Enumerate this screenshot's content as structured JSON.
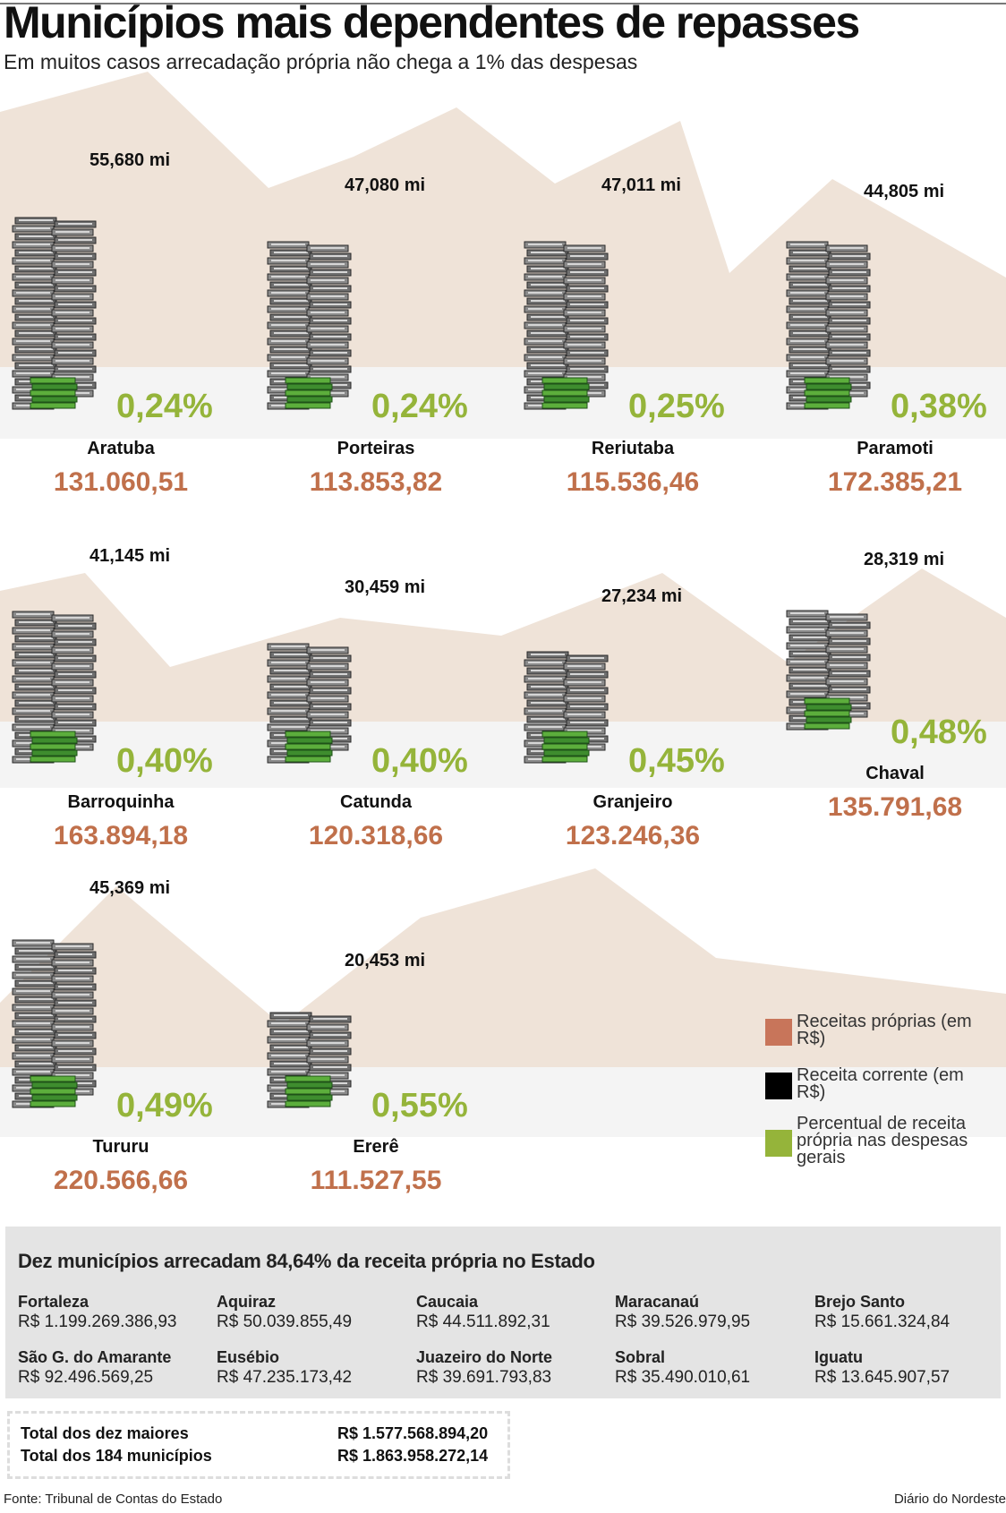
{
  "title": "Municípios mais dependentes de repasses",
  "subtitle": "Em muitos casos arrecadação própria não chega a 1% das despesas",
  "colors": {
    "receitas_proprias": "#c8755a",
    "receita_corrente": "#000000",
    "percentual": "#95b43a",
    "background_mountain": "#efe3d8",
    "band": "#f4f4f4"
  },
  "chart_data": {
    "type": "table",
    "title": "Municípios mais dependentes de repasses",
    "series_legend": [
      "Receitas próprias (em R$)",
      "Receita corrente (em R$)",
      "Percentual de receita própria nas despesas gerais"
    ],
    "rows": [
      {
        "municipio": "Aratuba",
        "receita_corrente": "55,680 mi",
        "percentual": "0,24%",
        "receitas_proprias": "131.060,51",
        "corrente_mi": 55.68
      },
      {
        "municipio": "Porteiras",
        "receita_corrente": "47,080 mi",
        "percentual": "0,24%",
        "receitas_proprias": "113.853,82",
        "corrente_mi": 47.08
      },
      {
        "municipio": "Reriutaba",
        "receita_corrente": "47,011 mi",
        "percentual": "0,25%",
        "receitas_proprias": "115.536,46",
        "corrente_mi": 47.011
      },
      {
        "municipio": "Paramoti",
        "receita_corrente": "44,805 mi",
        "percentual": "0,38%",
        "receitas_proprias": "172.385,21",
        "corrente_mi": 44.805
      },
      {
        "municipio": "Barroquinha",
        "receita_corrente": "41,145 mi",
        "percentual": "0,40%",
        "receitas_proprias": "163.894,18",
        "corrente_mi": 41.145
      },
      {
        "municipio": "Catunda",
        "receita_corrente": "30,459 mi",
        "percentual": "0,40%",
        "receitas_proprias": "120.318,66",
        "corrente_mi": 30.459
      },
      {
        "municipio": "Granjeiro",
        "receita_corrente": "27,234 mi",
        "percentual": "0,45%",
        "receitas_proprias": "123.246,36",
        "corrente_mi": 27.234
      },
      {
        "municipio": "Chaval",
        "receita_corrente": "28,319 mi",
        "percentual": "0,48%",
        "receitas_proprias": "135.791,68",
        "corrente_mi": 28.319
      },
      {
        "municipio": "Tururu",
        "receita_corrente": "45,369 mi",
        "percentual": "0,49%",
        "receitas_proprias": "220.566,66",
        "corrente_mi": 45.369
      },
      {
        "municipio": "Ererê",
        "receita_corrente": "20,453 mi",
        "percentual": "0,55%",
        "receitas_proprias": "111.527,55",
        "corrente_mi": 20.453
      }
    ]
  },
  "legend": [
    {
      "label": "Receitas próprias (em R$)",
      "color": "#c8755a"
    },
    {
      "label": "Receita corrente (em R$)",
      "color": "#000000"
    },
    {
      "label": "Percentual de receita própria nas despesas gerais",
      "color": "#95b43a"
    }
  ],
  "summary": {
    "title": "Dez municípios arrecadam 84,64% da receita própria no Estado",
    "cities": [
      {
        "name": "Fortaleza",
        "value": "R$ 1.199.269.386,93"
      },
      {
        "name": "Aquiraz",
        "value": "R$ 50.039.855,49"
      },
      {
        "name": "Caucaia",
        "value": "R$ 44.511.892,31"
      },
      {
        "name": "Maracanaú",
        "value": "R$ 39.526.979,95"
      },
      {
        "name": "Brejo Santo",
        "value": "R$ 15.661.324,84"
      },
      {
        "name": "São G. do Amarante",
        "value": "R$ 92.496.569,25"
      },
      {
        "name": "Eusébio",
        "value": "R$ 47.235.173,42"
      },
      {
        "name": "Juazeiro do Norte",
        "value": "R$ 39.691.793,83"
      },
      {
        "name": "Sobral",
        "value": "R$ 35.490.010,61"
      },
      {
        "name": "Iguatu",
        "value": "R$ 13.645.907,57"
      }
    ],
    "totals": [
      {
        "label": "Total dos dez maiores",
        "value": "R$ 1.577.568.894,20"
      },
      {
        "label": "Total dos 184 municípios",
        "value": "R$ 1.863.958.272,14"
      }
    ]
  },
  "footer": {
    "source": "Fonte: Tribunal de Contas do Estado",
    "credit": "Diário do Nordeste"
  }
}
